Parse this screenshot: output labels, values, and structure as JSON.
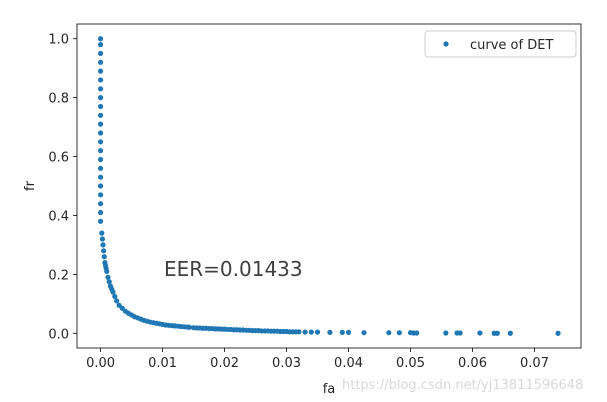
{
  "chart_data": {
    "type": "scatter",
    "title": "",
    "xlabel": "fa",
    "ylabel": "fr",
    "xlim": [
      -0.0038,
      0.0775
    ],
    "ylim": [
      -0.05,
      1.05
    ],
    "xticks": [
      "0.00",
      "0.01",
      "0.02",
      "0.03",
      "0.04",
      "0.05",
      "0.06",
      "0.07"
    ],
    "yticks": [
      "0.0",
      "0.2",
      "0.4",
      "0.6",
      "0.8",
      "1.0"
    ],
    "legend": {
      "position": "top-right",
      "entries": [
        "curve of DET"
      ]
    },
    "annotation": {
      "text": "EER=0.01433",
      "x": 0.01,
      "y": 0.22
    },
    "marker_color": "#1f77b4",
    "series": [
      {
        "name": "curve of DET",
        "x": [
          0.0,
          0.0,
          0.0,
          0.0,
          0.0,
          0.0,
          0.0,
          0.0,
          0.0,
          0.0,
          0.0,
          0.0,
          0.0,
          0.0,
          0.0,
          0.0,
          0.0,
          0.0,
          0.0,
          0.0,
          0.0,
          0.0,
          0.0002,
          0.0003,
          0.0004,
          0.0005,
          0.0006,
          0.0007,
          0.0008,
          0.0009,
          0.001,
          0.0012,
          0.0014,
          0.0016,
          0.0018,
          0.002,
          0.0023,
          0.0026,
          0.003,
          0.0035,
          0.004,
          0.0045,
          0.005,
          0.0055,
          0.006,
          0.0065,
          0.007,
          0.0075,
          0.008,
          0.0085,
          0.009,
          0.0095,
          0.01,
          0.0105,
          0.011,
          0.0115,
          0.012,
          0.0125,
          0.013,
          0.0135,
          0.014,
          0.0143,
          0.015,
          0.0155,
          0.016,
          0.0165,
          0.017,
          0.0175,
          0.018,
          0.0185,
          0.019,
          0.0195,
          0.02,
          0.0205,
          0.021,
          0.0215,
          0.022,
          0.0225,
          0.023,
          0.0235,
          0.024,
          0.0245,
          0.025,
          0.0255,
          0.026,
          0.0265,
          0.027,
          0.0275,
          0.028,
          0.0285,
          0.029,
          0.0295,
          0.03,
          0.0305,
          0.031,
          0.0315,
          0.032,
          0.033,
          0.034,
          0.035,
          0.037,
          0.039,
          0.04,
          0.0425,
          0.0465,
          0.0482,
          0.05,
          0.0505,
          0.051,
          0.0557,
          0.0575,
          0.058,
          0.0612,
          0.0635,
          0.064,
          0.0661,
          0.0738
        ],
        "y": [
          1.0,
          0.98,
          0.95,
          0.92,
          0.89,
          0.86,
          0.83,
          0.8,
          0.77,
          0.74,
          0.71,
          0.68,
          0.65,
          0.62,
          0.59,
          0.56,
          0.53,
          0.5,
          0.47,
          0.44,
          0.41,
          0.38,
          0.34,
          0.32,
          0.3,
          0.28,
          0.26,
          0.24,
          0.23,
          0.22,
          0.21,
          0.19,
          0.175,
          0.16,
          0.15,
          0.14,
          0.125,
          0.11,
          0.095,
          0.085,
          0.075,
          0.068,
          0.062,
          0.056,
          0.052,
          0.048,
          0.044,
          0.041,
          0.038,
          0.036,
          0.034,
          0.032,
          0.03,
          0.028,
          0.027,
          0.026,
          0.025,
          0.024,
          0.023,
          0.022,
          0.021,
          0.0205,
          0.019,
          0.018,
          0.018,
          0.017,
          0.017,
          0.016,
          0.016,
          0.015,
          0.015,
          0.014,
          0.014,
          0.013,
          0.013,
          0.012,
          0.012,
          0.011,
          0.011,
          0.01,
          0.01,
          0.009,
          0.009,
          0.009,
          0.008,
          0.008,
          0.008,
          0.007,
          0.007,
          0.007,
          0.006,
          0.006,
          0.006,
          0.005,
          0.005,
          0.005,
          0.005,
          0.004,
          0.004,
          0.004,
          0.003,
          0.003,
          0.003,
          0.002,
          0.002,
          0.002,
          0.002,
          0.001,
          0.001,
          0.001,
          0.001,
          0.001,
          0.001,
          0.0,
          0.0,
          0.0,
          0.0
        ]
      }
    ]
  },
  "watermark": "https://blog.csdn.net/yj13811596648"
}
